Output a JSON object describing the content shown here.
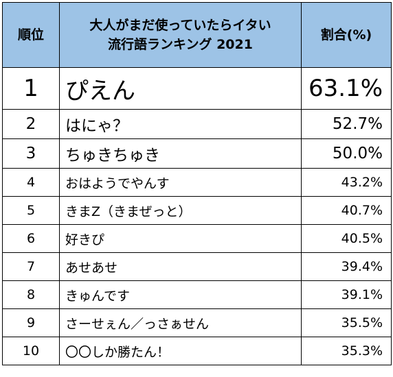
{
  "header": {
    "rank": "順位",
    "title_line1": "大人がまだ使っていたらイタい",
    "title_line2": "流行語ランキング 2021",
    "percent": "割合(%)"
  },
  "rows": [
    {
      "rank": "1",
      "word": "ぴえん",
      "percent": "63.1%"
    },
    {
      "rank": "2",
      "word": "はにゃ？",
      "percent": "52.7%"
    },
    {
      "rank": "3",
      "word": "ちゅきちゅき",
      "percent": "50.0%"
    },
    {
      "rank": "4",
      "word": "おはようでやんす",
      "percent": "43.2%"
    },
    {
      "rank": "5",
      "word": "きまZ（きまぜっと）",
      "percent": "40.7%"
    },
    {
      "rank": "6",
      "word": "好きぴ",
      "percent": "40.5%"
    },
    {
      "rank": "7",
      "word": "あせあせ",
      "percent": "39.4%"
    },
    {
      "rank": "8",
      "word": "きゅんです",
      "percent": "39.1%"
    },
    {
      "rank": "9",
      "word": "さーせぇん／っさぁせん",
      "percent": "35.5%"
    },
    {
      "rank": "10",
      "word": "〇〇しか勝たん！",
      "percent": "35.3%"
    }
  ],
  "colors": {
    "header_background": "#9dc3e6",
    "border": "#000000",
    "body_background": "#ffffff"
  }
}
